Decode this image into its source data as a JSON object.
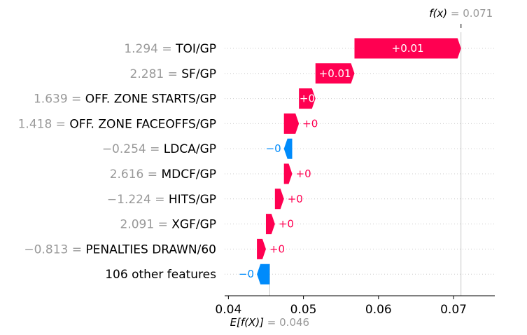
{
  "chart_data": {
    "type": "waterfall",
    "fx_label": "f(x)",
    "fx_value": "0.071",
    "base_label": "E[f(X)]",
    "base_value": "0.046",
    "x_ticks": [
      {
        "value": 0.04,
        "label": "0.04"
      },
      {
        "value": 0.05,
        "label": "0.05"
      },
      {
        "value": 0.06,
        "label": "0.06"
      },
      {
        "value": 0.07,
        "label": "0.07"
      }
    ],
    "xlim": [
      0.0395,
      0.0755
    ],
    "features": [
      {
        "value_label": "1.294",
        "name": "TOI/GP",
        "start": 0.0568,
        "end": 0.071,
        "label": "+0.01"
      },
      {
        "value_label": "2.281",
        "name": "SF/GP",
        "start": 0.0516,
        "end": 0.0568,
        "label": "+0.01"
      },
      {
        "value_label": "1.639",
        "name": "OFF. ZONE STARTS/GP",
        "start": 0.0494,
        "end": 0.0516,
        "label": "+0"
      },
      {
        "value_label": "1.418",
        "name": "OFF. ZONE FACEOFFS/GP",
        "start": 0.0474,
        "end": 0.0494,
        "label": "+0"
      },
      {
        "value_label": "−0.254",
        "name": "LDCA/GP",
        "start": 0.0485,
        "end": 0.0474,
        "label": "−0"
      },
      {
        "value_label": "2.616",
        "name": "MDCF/GP",
        "start": 0.0474,
        "end": 0.0485,
        "label": "+0"
      },
      {
        "value_label": "−1.224",
        "name": "HITS/GP",
        "start": 0.0462,
        "end": 0.0474,
        "label": "+0"
      },
      {
        "value_label": "2.091",
        "name": "XGF/GP",
        "start": 0.045,
        "end": 0.0462,
        "label": "+0"
      },
      {
        "value_label": "−0.813",
        "name": "PENALTIES DRAWN/60",
        "start": 0.0438,
        "end": 0.045,
        "label": "+0"
      },
      {
        "value_label": "",
        "name": "106 other features",
        "start": 0.0455,
        "end": 0.0438,
        "label": "−0"
      }
    ],
    "colors": {
      "positive": "#ff0051",
      "negative": "#008bfb",
      "muted": "#999999"
    }
  }
}
